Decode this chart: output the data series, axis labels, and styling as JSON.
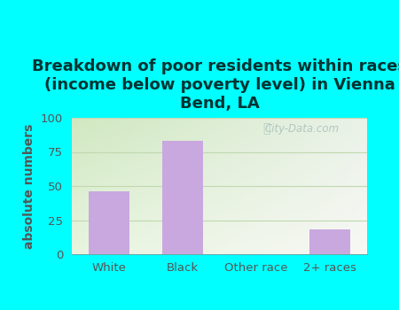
{
  "title": "Breakdown of poor residents within races\n(income below poverty level) in Vienna\nBend, LA",
  "categories": [
    "White",
    "Black",
    "Other race",
    "2+ races"
  ],
  "values": [
    46,
    83,
    0,
    18
  ],
  "bar_color": "#c9a8e0",
  "ylabel": "absolute numbers",
  "ylim": [
    0,
    100
  ],
  "yticks": [
    0,
    25,
    50,
    75,
    100
  ],
  "background_outer": "#00ffff",
  "background_inner_topleft": "#e8f5e0",
  "background_inner_topright": "#f5f5f0",
  "background_inner_bottomleft": "#d0e8c0",
  "background_inner_bottomright": "#e8f0e8",
  "title_fontsize": 13,
  "axis_label_fontsize": 10,
  "tick_fontsize": 9.5,
  "watermark_text": "City-Data.com",
  "grid_color": "#c0d8b0",
  "title_color": "#003333",
  "tick_color": "#555555",
  "ylabel_color": "#555555"
}
